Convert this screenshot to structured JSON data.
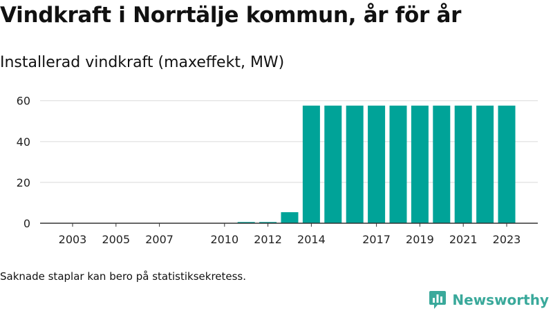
{
  "header": {
    "title": "Vindkraft i Norrtälje kommun, år för år",
    "subtitle": "Installerad vindkraft (maxeffekt, MW)"
  },
  "footer": {
    "note": "Saknade staplar kan bero på statistiksekretess.",
    "brand": "Newsworthy"
  },
  "colors": {
    "bar": "#00a398",
    "grid": "#d9d9d9",
    "axis": "#333333",
    "brand": "#3aa99b"
  },
  "chart_data": {
    "type": "bar",
    "title": "Installerad vindkraft (maxeffekt, MW)",
    "xlabel": "",
    "ylabel": "",
    "ylim": [
      0,
      66
    ],
    "yticks": [
      0,
      20,
      40,
      60
    ],
    "grid": true,
    "legend": "none",
    "x": [
      2003,
      2004,
      2005,
      2006,
      2007,
      2008,
      2009,
      2010,
      2011,
      2012,
      2013,
      2014,
      2015,
      2016,
      2017,
      2018,
      2019,
      2020,
      2021,
      2022,
      2023
    ],
    "xticks": [
      2003,
      2005,
      2007,
      2010,
      2012,
      2014,
      2017,
      2019,
      2021,
      2023
    ],
    "values": [
      0,
      0,
      0,
      0,
      0,
      0,
      0,
      0,
      0.6,
      0.6,
      5.4,
      57.6,
      57.6,
      57.6,
      57.6,
      57.6,
      57.6,
      57.6,
      57.6,
      57.6,
      57.6
    ]
  }
}
